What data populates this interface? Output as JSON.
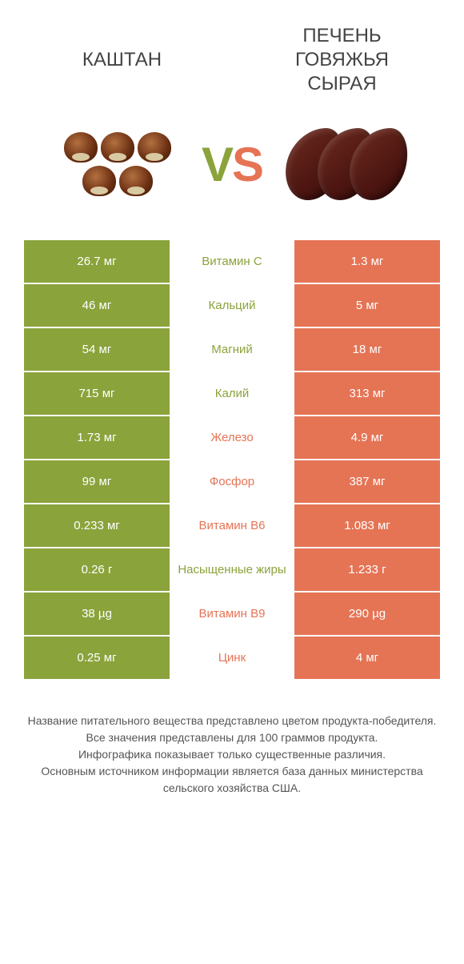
{
  "colors": {
    "green": "#8aa33b",
    "orange": "#e57455",
    "background": "#ffffff",
    "text": "#333333",
    "footer_text": "#555555"
  },
  "header": {
    "left_title": "КАШТАН",
    "right_title": "ПЕЧЕНЬ\nГОВЯЖЬЯ\nСЫРАЯ"
  },
  "vs": {
    "v": "V",
    "s": "S"
  },
  "rows": [
    {
      "left": "26.7 мг",
      "mid": "Витамин C",
      "right": "1.3 мг",
      "winner": "left"
    },
    {
      "left": "46 мг",
      "mid": "Кальций",
      "right": "5 мг",
      "winner": "left"
    },
    {
      "left": "54 мг",
      "mid": "Магний",
      "right": "18 мг",
      "winner": "left"
    },
    {
      "left": "715 мг",
      "mid": "Калий",
      "right": "313 мг",
      "winner": "left"
    },
    {
      "left": "1.73 мг",
      "mid": "Железо",
      "right": "4.9 мг",
      "winner": "right"
    },
    {
      "left": "99 мг",
      "mid": "Фосфор",
      "right": "387 мг",
      "winner": "right"
    },
    {
      "left": "0.233 мг",
      "mid": "Витамин B6",
      "right": "1.083 мг",
      "winner": "right"
    },
    {
      "left": "0.26 г",
      "mid": "Насыщенные жиры",
      "right": "1.233 г",
      "winner": "left"
    },
    {
      "left": "38 µg",
      "mid": "Витамин B9",
      "right": "290 µg",
      "winner": "right"
    },
    {
      "left": "0.25 мг",
      "mid": "Цинк",
      "right": "4 мг",
      "winner": "right"
    }
  ],
  "footer": {
    "l1": "Название питательного вещества представлено цветом продукта-победителя.",
    "l2": "Все значения представлены для 100 граммов продукта.",
    "l3": "Инфографика показывает только существенные различия.",
    "l4": "Основным источником информации является база данных министерства сельского хозяйства США."
  },
  "typography": {
    "title_fontsize": 24,
    "vs_fontsize": 60,
    "cell_fontsize": 15,
    "footer_fontsize": 14
  }
}
